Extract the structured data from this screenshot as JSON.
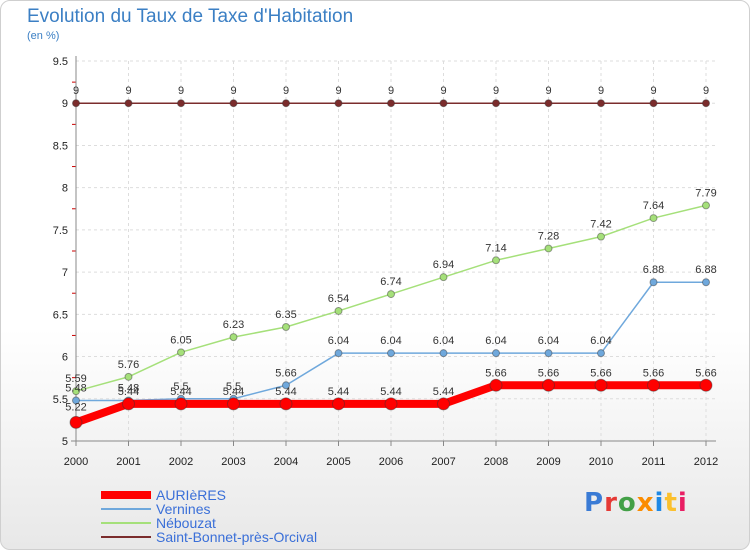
{
  "header": {
    "title": "Evolution du Taux de Taxe d'Habitation",
    "subtitle": "(en %)"
  },
  "branding": {
    "logo_text": "Proxiti",
    "logo_colors": [
      "#3a7bd5",
      "#e53935",
      "#43a047",
      "#fb8c00",
      "#1e88e5",
      "#fbc02d",
      "#e91e63"
    ]
  },
  "chart_data": {
    "type": "line",
    "title": "Evolution du Taux de Taxe d'Habitation",
    "subtitle": "(en %)",
    "xlabel": "",
    "ylabel": "",
    "x": [
      "2000",
      "2001",
      "2002",
      "2003",
      "2004",
      "2005",
      "2006",
      "2007",
      "2008",
      "2009",
      "2010",
      "2011",
      "2012"
    ],
    "ylim": [
      5,
      9.5
    ],
    "yticks": [
      "5",
      "5.5",
      "6",
      "6.5",
      "7",
      "7.5",
      "8",
      "8.5",
      "9",
      "9.5"
    ],
    "grid": true,
    "legend_position": "bottom-left",
    "series": [
      {
        "name": "AURIèRES",
        "color": "#ff0000",
        "values": [
          5.22,
          5.44,
          5.44,
          5.44,
          5.44,
          5.44,
          5.44,
          5.44,
          5.66,
          5.66,
          5.66,
          5.66,
          5.66
        ],
        "labels": [
          "5.22",
          "5.44",
          "5.44",
          "5.44",
          "5.44",
          "5.44",
          "5.44",
          "5.44",
          "5.66",
          "5.66",
          "5.66",
          "5.66",
          "5.66"
        ]
      },
      {
        "name": "Vernines",
        "color": "#6fa8dc",
        "values": [
          5.48,
          5.48,
          5.5,
          5.5,
          5.66,
          6.04,
          6.04,
          6.04,
          6.04,
          6.04,
          6.04,
          6.88,
          6.88
        ],
        "labels": [
          "5.48",
          "5.48",
          "5.5",
          "5.5",
          "5.66",
          "6.04",
          "6.04",
          "6.04",
          "6.04",
          "6.04",
          "6.04",
          "6.88",
          "6.88"
        ]
      },
      {
        "name": "Nébouzat",
        "color": "#a5e07a",
        "values": [
          5.59,
          5.76,
          6.05,
          6.23,
          6.35,
          6.54,
          6.74,
          6.94,
          7.14,
          7.28,
          7.42,
          7.64,
          7.79
        ],
        "labels": [
          "5.59",
          "5.76",
          "6.05",
          "6.23",
          "6.35",
          "6.54",
          "6.74",
          "6.94",
          "7.14",
          "7.28",
          "7.42",
          "7.64",
          "7.79"
        ]
      },
      {
        "name": "Saint-Bonnet-près-Orcival",
        "color": "#7b2c2c",
        "values": [
          9,
          9,
          9,
          9,
          9,
          9,
          9,
          9,
          9,
          9,
          9,
          9,
          9
        ],
        "labels": [
          "9",
          "9",
          "9",
          "9",
          "9",
          "9",
          "9",
          "9",
          "9",
          "9",
          "9",
          "9",
          "9"
        ]
      }
    ]
  }
}
